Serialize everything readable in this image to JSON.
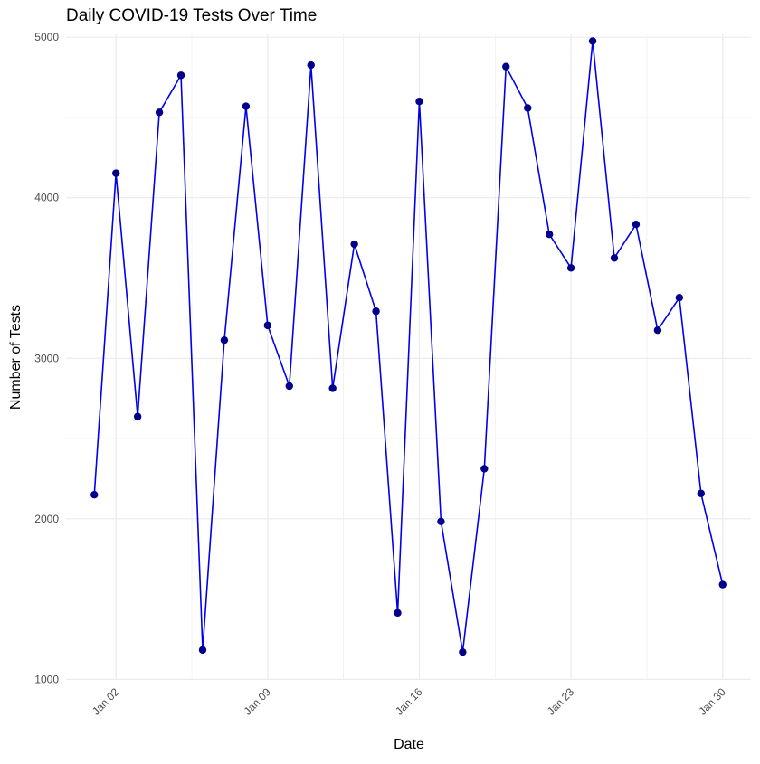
{
  "chart_data": {
    "type": "line",
    "title": "Daily COVID-19 Tests Over Time",
    "xlabel": "Date",
    "ylabel": "Number of Tests",
    "x": [
      "2024-01-01",
      "2024-01-02",
      "2024-01-03",
      "2024-01-04",
      "2024-01-05",
      "2024-01-06",
      "2024-01-07",
      "2024-01-08",
      "2024-01-09",
      "2024-01-10",
      "2024-01-11",
      "2024-01-12",
      "2024-01-13",
      "2024-01-14",
      "2024-01-15",
      "2024-01-16",
      "2024-01-17",
      "2024-01-18",
      "2024-01-19",
      "2024-01-20",
      "2024-01-21",
      "2024-01-22",
      "2024-01-23",
      "2024-01-24",
      "2024-01-25",
      "2024-01-26",
      "2024-01-27",
      "2024-01-28",
      "2024-01-29",
      "2024-01-30"
    ],
    "values": [
      2150,
      4153,
      2637,
      4532,
      4763,
      1183,
      3113,
      4570,
      3205,
      2827,
      4826,
      2813,
      3711,
      3293,
      1414,
      4600,
      1983,
      1170,
      2312,
      4817,
      4559,
      3772,
      3563,
      4976,
      3625,
      3834,
      3175,
      3378,
      2158,
      1590
    ],
    "ylim": [
      1000,
      5000
    ],
    "yticks": [
      1000,
      2000,
      3000,
      4000,
      5000
    ],
    "ytick_labels": [
      "1000",
      "2000",
      "3000",
      "4000",
      "5000"
    ],
    "xticks": [
      "2024-01-02",
      "2024-01-09",
      "2024-01-16",
      "2024-01-23",
      "2024-01-30"
    ],
    "xtick_labels": [
      "Jan 02",
      "Jan 09",
      "Jan 16",
      "Jan 23",
      "Jan 30"
    ],
    "grid": true,
    "legend": "none",
    "colors": {
      "line": "#0000ee",
      "point": "#00008b",
      "grid": "#ebebeb",
      "text": "#4d4d4d"
    }
  }
}
